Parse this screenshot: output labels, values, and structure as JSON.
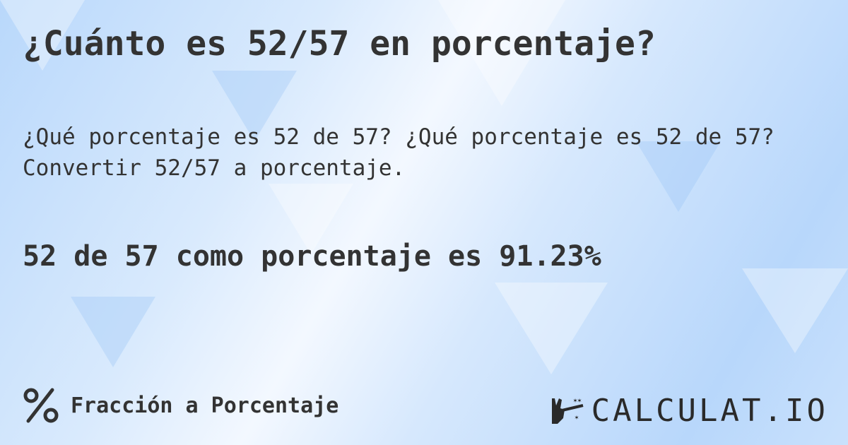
{
  "title": "¿Cuánto es 52/57 en porcentaje?",
  "description": [
    "¿Qué porcentaje es 52 de 57? ¿Qué porcentaje es 52 de 57?",
    "Convertir 52/57 a porcentaje."
  ],
  "result": "52 de 57 como porcentaje es 91.23%",
  "footer": {
    "icon": "percent-icon",
    "label": "Fracción a Porcentaje"
  },
  "logo": {
    "text": "CALCULAT.IO",
    "icon": "magic-hand-icon"
  },
  "colors": {
    "text": "#333333",
    "background": "#cfe4fc"
  }
}
